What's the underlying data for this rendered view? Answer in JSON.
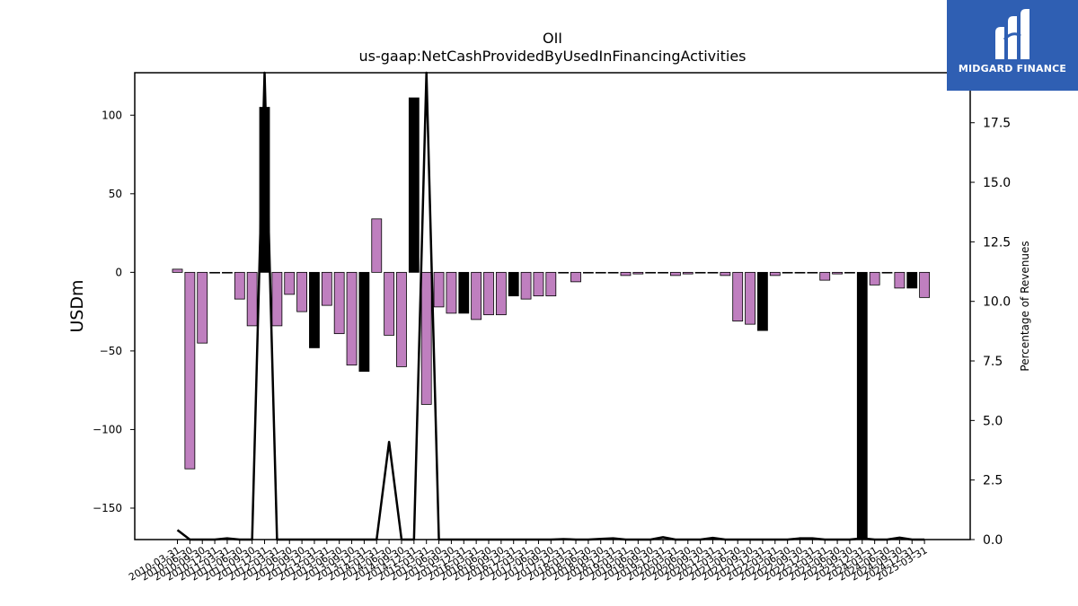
{
  "chart_data": {
    "type": "bar",
    "title": "OII",
    "subtitle": "us-gaap:NetCashProvidedByUsedInFinancingActivities",
    "ylabel": "USDm",
    "y2label": "Percentage of Revenues",
    "ylim": [
      -170,
      127
    ],
    "y2lim": [
      0,
      19.6
    ],
    "yticks": [
      100,
      50,
      0,
      -50,
      -100,
      -150
    ],
    "ytick_labels": [
      "100",
      "50",
      "0",
      "−50",
      "−100",
      "−150"
    ],
    "y2ticks": [
      0.0,
      2.5,
      5.0,
      7.5,
      10.0,
      12.5,
      15.0,
      17.5
    ],
    "y2tick_labels": [
      "0.0",
      "2.5",
      "5.0",
      "7.5",
      "10.0",
      "12.5",
      "15.0",
      "17.5"
    ],
    "grid": false,
    "categories": [
      "2010-03-31",
      "2010-06-30",
      "2010-09-30",
      "2010-12-31",
      "2011-03-31",
      "2011-06-30",
      "2011-09-30",
      "2011-12-31",
      "2012-03-31",
      "2012-06-30",
      "2012-09-30",
      "2012-12-31",
      "2013-03-31",
      "2013-06-30",
      "2013-09-30",
      "2013-12-31",
      "2014-03-31",
      "2014-06-30",
      "2014-09-30",
      "2014-12-31",
      "2015-03-31",
      "2015-06-30",
      "2015-09-30",
      "2015-12-31",
      "2016-03-31",
      "2016-06-30",
      "2016-09-30",
      "2016-12-31",
      "2017-03-31",
      "2017-06-30",
      "2017-09-30",
      "2017-12-31",
      "2018-03-31",
      "2018-06-30",
      "2018-09-30",
      "2018-12-31",
      "2019-03-31",
      "2019-06-30",
      "2019-09-30",
      "2019-12-31",
      "2020-03-31",
      "2020-06-30",
      "2020-09-30",
      "2020-12-31",
      "2021-03-31",
      "2021-06-30",
      "2021-09-30",
      "2021-12-31",
      "2022-03-31",
      "2022-06-30",
      "2022-09-30",
      "2022-12-31",
      "2023-03-31",
      "2023-06-30",
      "2023-09-30",
      "2023-12-31",
      "2024-03-31",
      "2024-06-30",
      "2024-09-30",
      "2024-12-31",
      "2025-03-31"
    ],
    "xtick_labels": [
      "2010-03-31",
      "2010-06-30",
      "2010-09-30",
      "2010-12-31",
      "2011-03-31",
      "2011-06-30",
      "2011-09-30",
      "2011-12-31",
      "2012-03-31",
      "2012-06-30",
      "2012-09-30",
      "2012-12-31",
      "2013-03-31",
      "2013-06-30",
      "2013-09-30",
      "2013-12-31",
      "2014-03-31",
      "2014-06-30",
      "2014-09-30",
      "2014-12-31",
      "2015-03-31",
      "2015-06-30",
      "2015-09-30",
      "2015-12-31",
      "2016-03-31",
      "2016-06-30",
      "2016-09-30",
      "2016-12-31",
      "2017-03-31",
      "2017-06-30",
      "2017-09-30",
      "2017-12-31",
      "2018-03-31",
      "2018-06-30",
      "2018-09-30",
      "2018-12-31",
      "2019-03-31",
      "2019-06-30",
      "2019-09-30",
      "2019-12-31",
      "2020-03-31",
      "2020-06-30",
      "2020-09-30",
      "2020-12-31",
      "2021-03-31",
      "2021-06-30",
      "2021-09-30",
      "2021-12-31",
      "2022-03-31",
      "2022-06-30",
      "2022-09-30",
      "2022-12-31",
      "2023-03-31",
      "2023-06-30",
      "2023-09-30",
      "2023-12-31",
      "2024-03-31",
      "2024-06-30",
      "2024-09-30",
      "2024-12-31",
      "2025-03-31"
    ],
    "values": [
      2,
      -125,
      -45,
      0,
      0,
      -17,
      -34,
      105,
      -34,
      -14,
      -25,
      -48,
      -21,
      -39,
      -59,
      -63,
      34,
      -40,
      -60,
      111,
      -84,
      -22,
      -26,
      -26,
      -30,
      -27,
      -27,
      -15,
      -17,
      -15,
      -15,
      0,
      -6,
      0,
      0,
      0,
      -2,
      -1,
      0,
      0,
      -2,
      -1,
      0,
      0,
      -2,
      -31,
      -33,
      -37,
      -2,
      0,
      0,
      0,
      -5,
      -1,
      0,
      -170,
      -8,
      0,
      -10,
      -10,
      -16
    ],
    "highlight": [
      false,
      false,
      false,
      false,
      false,
      false,
      false,
      true,
      false,
      false,
      false,
      true,
      false,
      false,
      false,
      true,
      false,
      false,
      false,
      true,
      false,
      false,
      false,
      true,
      false,
      false,
      false,
      true,
      false,
      false,
      false,
      false,
      false,
      false,
      false,
      false,
      false,
      false,
      false,
      false,
      false,
      false,
      false,
      false,
      false,
      false,
      false,
      true,
      false,
      false,
      false,
      false,
      false,
      false,
      false,
      true,
      false,
      false,
      false,
      true,
      false
    ],
    "bar_color": "#bf7fbf",
    "highlight_color": "#000000",
    "line": {
      "name": "Percentage of Revenues",
      "values": [
        0.4,
        0,
        0,
        0,
        0.05,
        0,
        0,
        19.6,
        0,
        0,
        0,
        0,
        0,
        0,
        0,
        0,
        0,
        4.1,
        0,
        0,
        19.6,
        0,
        0,
        0,
        0,
        0,
        0,
        0,
        0,
        0,
        0,
        0.02,
        0,
        0,
        0.03,
        0.05,
        0,
        0,
        0,
        0.1,
        0,
        0,
        0,
        0.07,
        0,
        0,
        0,
        0,
        0,
        0,
        0.05,
        0.05,
        0,
        0,
        0,
        0.05,
        0,
        0,
        0.08,
        0,
        0
      ],
      "color": "#000000"
    }
  },
  "logo": {
    "text": "MIDGARD FINANCE",
    "background": "#2f5fb3"
  }
}
